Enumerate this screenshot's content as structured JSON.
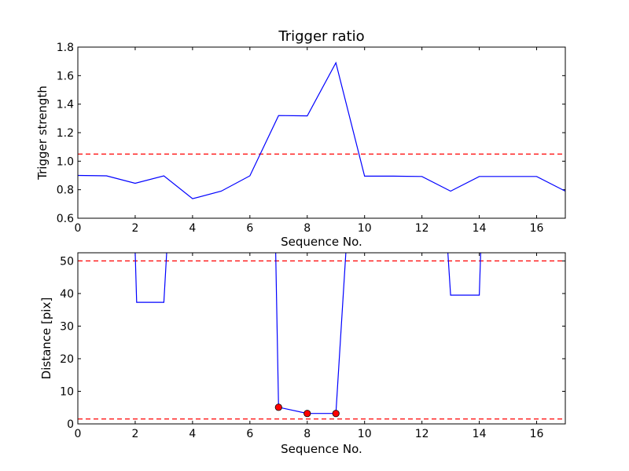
{
  "chart_data": [
    {
      "type": "line",
      "title": "Trigger ratio",
      "xlabel": "Sequence No.",
      "ylabel": "Trigger strength",
      "xlim": [
        0,
        17
      ],
      "ylim": [
        0.6,
        1.8
      ],
      "xticks": [
        0,
        2,
        4,
        6,
        8,
        10,
        12,
        14,
        16
      ],
      "yticks": [
        0.6,
        0.8,
        1.0,
        1.2,
        1.4,
        1.6,
        1.8
      ],
      "x": [
        0,
        1,
        2,
        3,
        4,
        5,
        6,
        7,
        8,
        9,
        10,
        11,
        12,
        13,
        14,
        15,
        16,
        17
      ],
      "series": [
        {
          "color": "#0000ff",
          "values": [
            0.9,
            0.897,
            0.845,
            0.897,
            0.737,
            0.79,
            0.897,
            1.32,
            1.318,
            1.69,
            0.895,
            0.895,
            0.893,
            0.79,
            0.893,
            0.893,
            0.893,
            0.79
          ]
        }
      ],
      "hlines": [
        {
          "y": 1.05,
          "color": "#ff0000",
          "style": "dashed"
        }
      ],
      "grid": false
    },
    {
      "type": "line",
      "title": "",
      "xlabel": "Sequence No.",
      "ylabel": "Distance [pix]",
      "xlim": [
        0,
        17
      ],
      "ylim": [
        0,
        52.5
      ],
      "xticks": [
        0,
        2,
        4,
        6,
        8,
        10,
        12,
        14,
        16
      ],
      "yticks": [
        0,
        10,
        20,
        30,
        40,
        50
      ],
      "x": [
        2,
        2.05,
        3,
        3.1,
        6.9,
        7,
        8,
        9,
        9.35,
        12.9,
        13,
        14,
        14.05
      ],
      "series": [
        {
          "color": "#0000ff",
          "values": [
            53,
            37.3,
            37.3,
            53,
            53,
            5.1,
            3.2,
            3.2,
            53,
            53,
            39.5,
            39.5,
            53
          ]
        }
      ],
      "markers": {
        "color": "#ff0000",
        "x": [
          7,
          8,
          9
        ],
        "y": [
          5.1,
          3.2,
          3.2
        ]
      },
      "hlines": [
        {
          "y": 50,
          "color": "#ff0000",
          "style": "dashed"
        },
        {
          "y": 1.5,
          "color": "#ff0000",
          "style": "dashed"
        }
      ],
      "grid": false
    }
  ]
}
